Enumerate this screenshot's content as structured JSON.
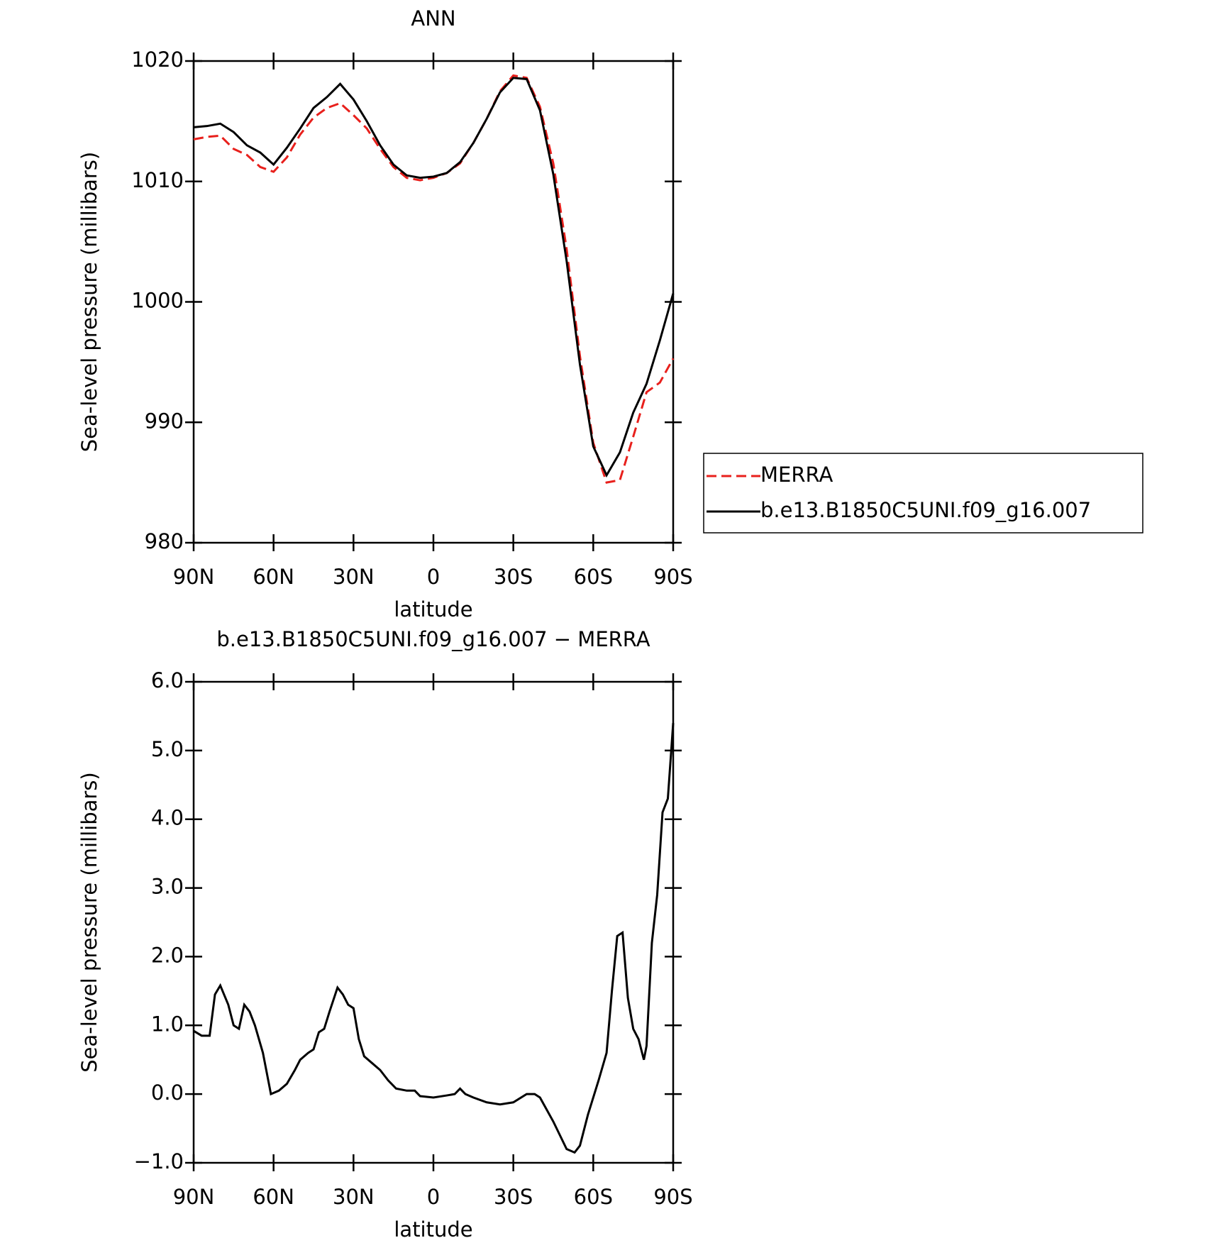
{
  "chart_data": [
    {
      "type": "line",
      "title": "ANN",
      "xlabel": "latitude",
      "ylabel": "Sea-level pressure (millibars)",
      "x": [
        90,
        85,
        80,
        75,
        70,
        65,
        60,
        55,
        50,
        45,
        40,
        35,
        30,
        25,
        20,
        15,
        10,
        5,
        0,
        -5,
        -10,
        -15,
        -20,
        -25,
        -30,
        -35,
        -40,
        -45,
        -50,
        -55,
        -60,
        -65,
        -70,
        -75,
        -80,
        -85,
        -90
      ],
      "series": [
        {
          "name": "MERRA",
          "color": "#e8201c",
          "dash": true,
          "values": [
            1013.5,
            1013.7,
            1013.8,
            1012.7,
            1012.2,
            1011.2,
            1010.8,
            1012.0,
            1013.9,
            1015.3,
            1016.1,
            1016.5,
            1015.5,
            1014.4,
            1012.7,
            1011.2,
            1010.3,
            1010.1,
            1010.3,
            1010.7,
            1011.5,
            1013.2,
            1015.2,
            1017.5,
            1018.8,
            1018.6,
            1016.2,
            1011.5,
            1004.4,
            995.5,
            988.3,
            985.0,
            985.2,
            988.8,
            992.5,
            993.3,
            995.3
          ]
        },
        {
          "name": "b.e13.B1850C5UNI.f09_g16.007",
          "color": "#000000",
          "dash": false,
          "values": [
            1014.5,
            1014.6,
            1014.8,
            1014.1,
            1013.0,
            1012.4,
            1011.4,
            1012.8,
            1014.4,
            1016.1,
            1017.0,
            1018.1,
            1016.8,
            1015.0,
            1013.0,
            1011.4,
            1010.5,
            1010.3,
            1010.4,
            1010.7,
            1011.6,
            1013.2,
            1015.2,
            1017.4,
            1018.6,
            1018.5,
            1015.9,
            1010.6,
            1003.4,
            994.8,
            988.0,
            985.6,
            987.5,
            990.8,
            993.2,
            996.8,
            1000.7
          ]
        }
      ],
      "xlim": [
        90,
        -90
      ],
      "xticks": [
        {
          "value": 90,
          "label": "90N"
        },
        {
          "value": 60,
          "label": "60N"
        },
        {
          "value": 30,
          "label": "30N"
        },
        0,
        {
          "value": -30,
          "label": "30S"
        },
        {
          "value": -60,
          "label": "60S"
        },
        {
          "value": -90,
          "label": "90S"
        }
      ],
      "ylim": [
        980,
        1020
      ],
      "yticks": [
        980,
        990,
        1000,
        1010,
        1020
      ],
      "legend": "outside right"
    },
    {
      "type": "line",
      "title": "b.e13.B1850C5UNI.f09_g16.007 − MERRA",
      "xlabel": "latitude",
      "ylabel": "Sea-level pressure (millibars)",
      "x": [
        90,
        87,
        84,
        82,
        80,
        77,
        75,
        73,
        71,
        69,
        67,
        64,
        61,
        58,
        55,
        52,
        50,
        47,
        45,
        43,
        41,
        39,
        36,
        34,
        32,
        30,
        28,
        26,
        23,
        20,
        17,
        14,
        10,
        7,
        5,
        0,
        -5,
        -8,
        -10,
        -12,
        -15,
        -20,
        -25,
        -30,
        -35,
        -38,
        -40,
        -45,
        -50,
        -53,
        -55,
        -58,
        -62,
        -65,
        -67,
        -69,
        -71,
        -73,
        -75,
        -77,
        -79,
        -80,
        -82,
        -84,
        -86,
        -88,
        -90
      ],
      "series": [
        {
          "color": "#000000",
          "dash": false,
          "values": [
            0.92,
            0.85,
            0.85,
            1.45,
            1.58,
            1.3,
            1.0,
            0.95,
            1.3,
            1.2,
            1.0,
            0.6,
            0.0,
            0.05,
            0.15,
            0.35,
            0.5,
            0.6,
            0.65,
            0.9,
            0.95,
            1.2,
            1.55,
            1.45,
            1.3,
            1.25,
            0.8,
            0.55,
            0.45,
            0.35,
            0.2,
            0.08,
            0.05,
            0.05,
            -0.03,
            -0.05,
            -0.02,
            0.0,
            0.08,
            0.0,
            -0.05,
            -0.12,
            -0.15,
            -0.12,
            0.0,
            0.0,
            -0.05,
            -0.4,
            -0.8,
            -0.85,
            -0.75,
            -0.3,
            0.2,
            0.6,
            1.5,
            2.3,
            2.35,
            1.4,
            0.95,
            0.8,
            0.5,
            0.7,
            2.2,
            2.9,
            4.1,
            4.3,
            5.4
          ]
        }
      ],
      "xlim": [
        90,
        -90
      ],
      "xticks": [
        {
          "value": 90,
          "label": "90N"
        },
        {
          "value": 60,
          "label": "60N"
        },
        {
          "value": 30,
          "label": "30N"
        },
        0,
        {
          "value": -30,
          "label": "30S"
        },
        {
          "value": -60,
          "label": "60S"
        },
        {
          "value": -90,
          "label": "90S"
        }
      ],
      "ylim": [
        -1,
        6
      ],
      "yticks": [
        {
          "value": -1,
          "label": "−1.0"
        },
        {
          "value": 0,
          "label": "0.0"
        },
        {
          "value": 1,
          "label": "1.0"
        },
        {
          "value": 2,
          "label": "2.0"
        },
        {
          "value": 3,
          "label": "3.0"
        },
        {
          "value": 4,
          "label": "4.0"
        },
        {
          "value": 5,
          "label": "5.0"
        },
        {
          "value": 6,
          "label": "6.0"
        }
      ]
    }
  ]
}
